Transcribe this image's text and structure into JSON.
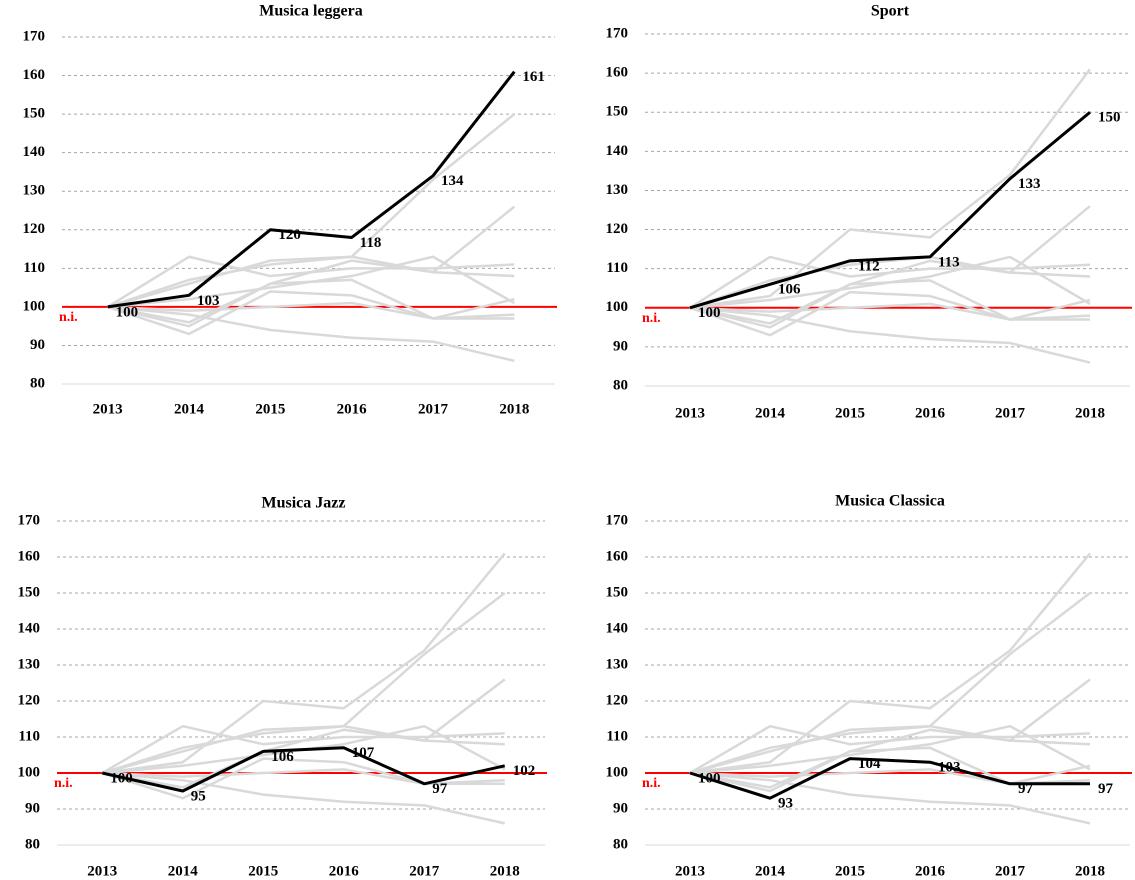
{
  "chart_data": [
    {
      "type": "line",
      "title": "Musica leggera",
      "categories": [
        "2013",
        "2014",
        "2015",
        "2016",
        "2017",
        "2018"
      ],
      "series": [
        {
          "color": "#d9d9d9",
          "values": [
            100,
            106,
            112,
            113,
            133,
            150
          ]
        },
        {
          "color": "#d9d9d9",
          "values": [
            100,
            95,
            106,
            107,
            97,
            102
          ]
        },
        {
          "color": "#d9d9d9",
          "values": [
            100,
            93,
            104,
            103,
            97,
            97
          ]
        },
        {
          "color": "#d9d9d9",
          "values": [
            100,
            113,
            108,
            110,
            110,
            111
          ]
        },
        {
          "color": "#d9d9d9",
          "values": [
            100,
            107,
            111,
            113,
            109,
            108
          ]
        },
        {
          "color": "#d9d9d9",
          "values": [
            100,
            102,
            105,
            108,
            113,
            101
          ]
        },
        {
          "color": "#d9d9d9",
          "values": [
            100,
            98,
            94,
            92,
            91,
            86
          ]
        },
        {
          "color": "#d9d9d9",
          "values": [
            100,
            96,
            106,
            112,
            109,
            126
          ]
        },
        {
          "color": "#d9d9d9",
          "values": [
            100,
            99,
            100,
            101,
            97,
            98
          ]
        },
        {
          "color": "#000000",
          "values": [
            100,
            103,
            120,
            118,
            134,
            161
          ],
          "data_labels": true
        }
      ],
      "ylim": [
        80,
        170
      ],
      "yticks": [
        80,
        90,
        100,
        110,
        120,
        130,
        140,
        150,
        160,
        170
      ],
      "grid": true,
      "reference_line": {
        "value": 100,
        "label": "n.i.",
        "color": "#ff0000"
      }
    },
    {
      "type": "line",
      "title": "Sport",
      "categories": [
        "2013",
        "2014",
        "2015",
        "2016",
        "2017",
        "2018"
      ],
      "series": [
        {
          "color": "#d9d9d9",
          "values": [
            100,
            103,
            120,
            118,
            134,
            161
          ]
        },
        {
          "color": "#d9d9d9",
          "values": [
            100,
            95,
            106,
            107,
            97,
            102
          ]
        },
        {
          "color": "#d9d9d9",
          "values": [
            100,
            93,
            104,
            103,
            97,
            97
          ]
        },
        {
          "color": "#d9d9d9",
          "values": [
            100,
            113,
            108,
            110,
            110,
            111
          ]
        },
        {
          "color": "#d9d9d9",
          "values": [
            100,
            107,
            111,
            113,
            109,
            108
          ]
        },
        {
          "color": "#d9d9d9",
          "values": [
            100,
            102,
            105,
            108,
            113,
            101
          ]
        },
        {
          "color": "#d9d9d9",
          "values": [
            100,
            98,
            94,
            92,
            91,
            86
          ]
        },
        {
          "color": "#d9d9d9",
          "values": [
            100,
            96,
            106,
            112,
            109,
            126
          ]
        },
        {
          "color": "#d9d9d9",
          "values": [
            100,
            99,
            100,
            101,
            97,
            98
          ]
        },
        {
          "color": "#000000",
          "values": [
            100,
            106,
            112,
            113,
            133,
            150
          ],
          "data_labels": true
        }
      ],
      "ylim": [
        80,
        170
      ],
      "yticks": [
        80,
        90,
        100,
        110,
        120,
        130,
        140,
        150,
        160,
        170
      ],
      "grid": true,
      "reference_line": {
        "value": 100,
        "label": "n.i.",
        "color": "#ff0000"
      }
    },
    {
      "type": "line",
      "title": "Musica Jazz",
      "categories": [
        "2013",
        "2014",
        "2015",
        "2016",
        "2017",
        "2018"
      ],
      "series": [
        {
          "color": "#d9d9d9",
          "values": [
            100,
            103,
            120,
            118,
            134,
            161
          ]
        },
        {
          "color": "#d9d9d9",
          "values": [
            100,
            106,
            112,
            113,
            133,
            150
          ]
        },
        {
          "color": "#d9d9d9",
          "values": [
            100,
            93,
            104,
            103,
            97,
            97
          ]
        },
        {
          "color": "#d9d9d9",
          "values": [
            100,
            113,
            108,
            110,
            110,
            111
          ]
        },
        {
          "color": "#d9d9d9",
          "values": [
            100,
            107,
            111,
            113,
            109,
            108
          ]
        },
        {
          "color": "#d9d9d9",
          "values": [
            100,
            102,
            105,
            108,
            113,
            101
          ]
        },
        {
          "color": "#d9d9d9",
          "values": [
            100,
            98,
            94,
            92,
            91,
            86
          ]
        },
        {
          "color": "#d9d9d9",
          "values": [
            100,
            96,
            106,
            112,
            109,
            126
          ]
        },
        {
          "color": "#d9d9d9",
          "values": [
            100,
            99,
            100,
            101,
            97,
            98
          ]
        },
        {
          "color": "#000000",
          "values": [
            100,
            95,
            106,
            107,
            97,
            102
          ],
          "data_labels": true
        }
      ],
      "ylim": [
        80,
        170
      ],
      "yticks": [
        80,
        90,
        100,
        110,
        120,
        130,
        140,
        150,
        160,
        170
      ],
      "grid": true,
      "reference_line": {
        "value": 100,
        "label": "n.i.",
        "color": "#ff0000"
      }
    },
    {
      "type": "line",
      "title": "Musica Classica",
      "categories": [
        "2013",
        "2014",
        "2015",
        "2016",
        "2017",
        "2018"
      ],
      "series": [
        {
          "color": "#d9d9d9",
          "values": [
            100,
            103,
            120,
            118,
            134,
            161
          ]
        },
        {
          "color": "#d9d9d9",
          "values": [
            100,
            106,
            112,
            113,
            133,
            150
          ]
        },
        {
          "color": "#d9d9d9",
          "values": [
            100,
            95,
            106,
            107,
            97,
            102
          ]
        },
        {
          "color": "#d9d9d9",
          "values": [
            100,
            113,
            108,
            110,
            110,
            111
          ]
        },
        {
          "color": "#d9d9d9",
          "values": [
            100,
            107,
            111,
            113,
            109,
            108
          ]
        },
        {
          "color": "#d9d9d9",
          "values": [
            100,
            102,
            105,
            108,
            113,
            101
          ]
        },
        {
          "color": "#d9d9d9",
          "values": [
            100,
            98,
            94,
            92,
            91,
            86
          ]
        },
        {
          "color": "#d9d9d9",
          "values": [
            100,
            96,
            106,
            112,
            109,
            126
          ]
        },
        {
          "color": "#d9d9d9",
          "values": [
            100,
            99,
            100,
            101,
            97,
            98
          ]
        },
        {
          "color": "#000000",
          "values": [
            100,
            93,
            104,
            103,
            97,
            97
          ],
          "data_labels": true
        }
      ],
      "ylim": [
        80,
        170
      ],
      "yticks": [
        80,
        90,
        100,
        110,
        120,
        130,
        140,
        150,
        160,
        170
      ],
      "grid": true,
      "reference_line": {
        "value": 100,
        "label": "n.i.",
        "color": "#ff0000"
      }
    }
  ]
}
